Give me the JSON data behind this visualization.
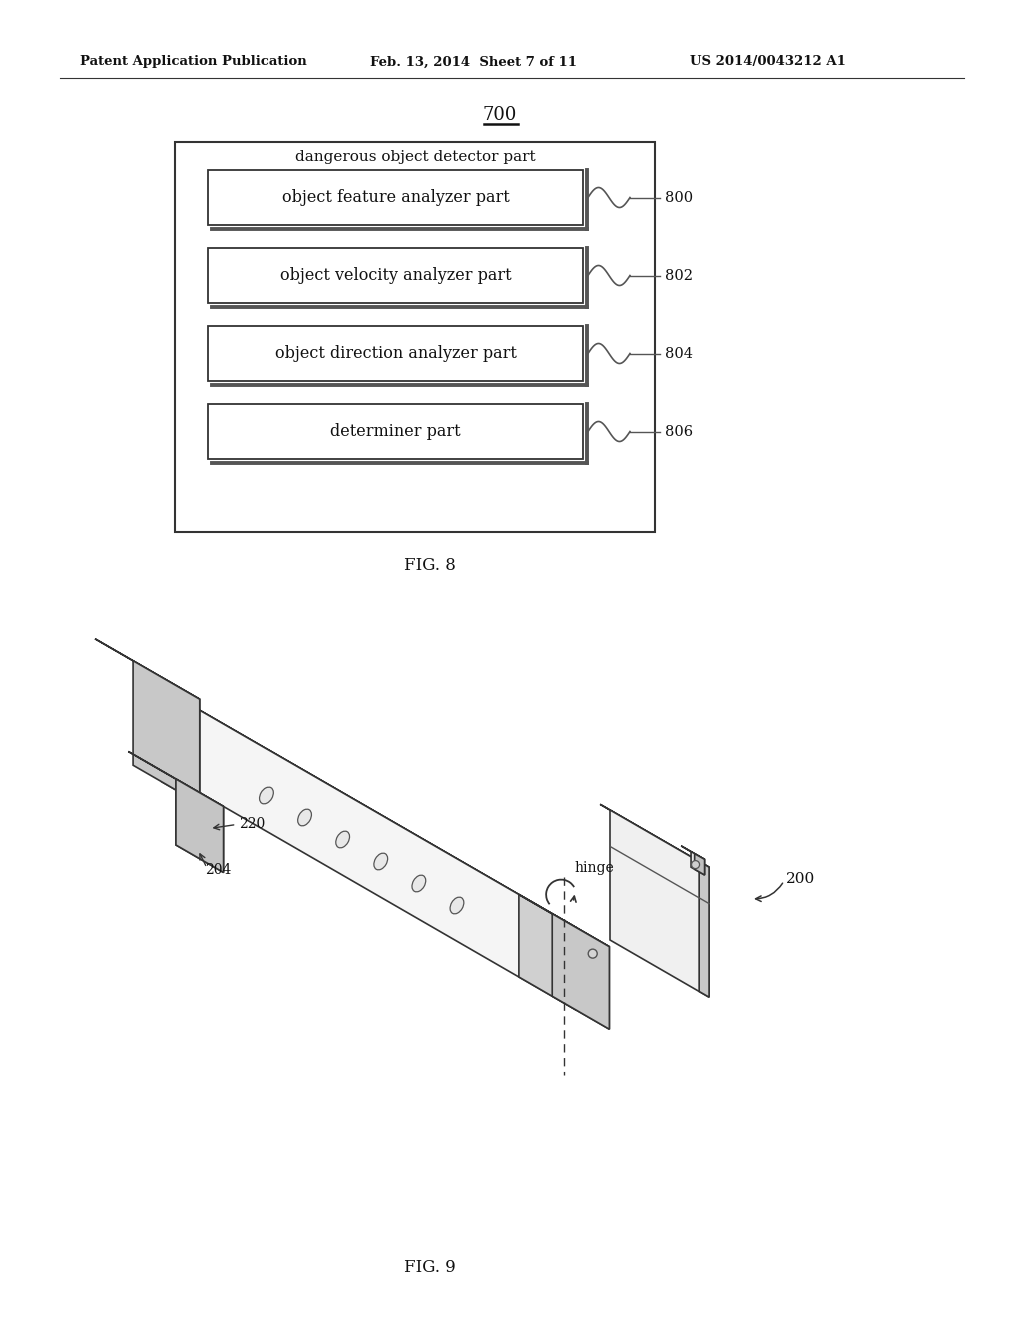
{
  "bg_color": "#ffffff",
  "header_left": "Patent Application Publication",
  "header_mid": "Feb. 13, 2014  Sheet 7 of 11",
  "header_right": "US 2014/0043212 A1",
  "fig8_label": "FIG. 8",
  "fig9_label": "FIG. 9",
  "ref_700": "700",
  "outer_box_label": "dangerous object detector part",
  "boxes": [
    {
      "label": "object feature analyzer part",
      "ref": "800"
    },
    {
      "label": "object velocity analyzer part",
      "ref": "802"
    },
    {
      "label": "object direction analyzer part",
      "ref": "804"
    },
    {
      "label": "determiner part",
      "ref": "806"
    }
  ],
  "hinge_label": "hinge",
  "ref_200": "200",
  "ref_204": "204",
  "ref_220": "220"
}
